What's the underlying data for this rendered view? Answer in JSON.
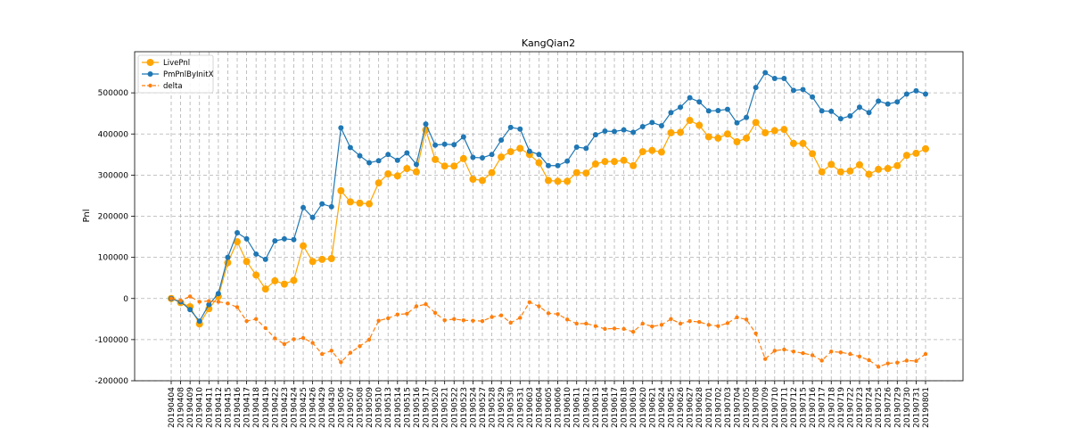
{
  "chart_data": {
    "type": "line",
    "title": "KangQian2",
    "xlabel": "",
    "ylabel": "Pnl",
    "ylim": [
      -200000,
      600000
    ],
    "yticks": [
      -200000,
      -100000,
      0,
      100000,
      200000,
      300000,
      400000,
      500000
    ],
    "grid": true,
    "legend_position": "top-left",
    "categories": [
      "20190404",
      "20190408",
      "20190409",
      "20190410",
      "20190411",
      "20190412",
      "20190415",
      "20190416",
      "20190417",
      "20190418",
      "20190419",
      "20190422",
      "20190423",
      "20190424",
      "20190425",
      "20190426",
      "20190429",
      "20190430",
      "20190506",
      "20190507",
      "20190508",
      "20190509",
      "20190510",
      "20190513",
      "20190514",
      "20190515",
      "20190516",
      "20190517",
      "20190520",
      "20190521",
      "20190522",
      "20190523",
      "20190524",
      "20190527",
      "20190528",
      "20190529",
      "20190530",
      "20190531",
      "20190603",
      "20190604",
      "20190605",
      "20190606",
      "20190610",
      "20190611",
      "20190612",
      "20190613",
      "20190614",
      "20190617",
      "20190618",
      "20190619",
      "20190620",
      "20190621",
      "20190624",
      "20190625",
      "20190626",
      "20190627",
      "20190628",
      "20190701",
      "20190702",
      "20190703",
      "20190704",
      "20190705",
      "20190708",
      "20190709",
      "20190710",
      "20190711",
      "20190712",
      "20190715",
      "20190716",
      "20190717",
      "20190718",
      "20190719",
      "20190722",
      "20190723",
      "20190724",
      "20190725",
      "20190726",
      "20190729",
      "20190730",
      "20190731",
      "20190801"
    ],
    "series": [
      {
        "name": "LivePnl",
        "color": "#ffa500",
        "style": "solid",
        "marker": "circle-large",
        "values": [
          0,
          -10000,
          -20000,
          -62000,
          -25000,
          5000,
          87000,
          138000,
          90000,
          57000,
          23000,
          43000,
          35000,
          44000,
          128000,
          90000,
          95000,
          97000,
          262000,
          235000,
          232000,
          230000,
          281000,
          303000,
          298000,
          316000,
          308000,
          410000,
          338000,
          322000,
          322000,
          340000,
          290000,
          287000,
          306000,
          344000,
          357000,
          365000,
          350000,
          330000,
          287000,
          285000,
          285000,
          306000,
          305000,
          327000,
          333000,
          333000,
          336000,
          323000,
          357000,
          360000,
          356000,
          403000,
          404000,
          433000,
          421000,
          393000,
          390000,
          400000,
          381000,
          390000,
          428000,
          403000,
          408000,
          411000,
          377000,
          377000,
          352000,
          308000,
          326000,
          308000,
          310000,
          325000,
          302000,
          314000,
          316000,
          323000,
          348000,
          353000,
          364000
        ]
      },
      {
        "name": "PmPnlByInitX",
        "color": "#1f77b4",
        "style": "solid",
        "marker": "circle",
        "values": [
          0,
          -8000,
          -27000,
          -55000,
          -15000,
          12000,
          100000,
          160000,
          145000,
          108000,
          95000,
          140000,
          145000,
          143000,
          221000,
          197000,
          230000,
          223000,
          415000,
          367000,
          347000,
          330000,
          335000,
          350000,
          336000,
          354000,
          326000,
          424000,
          373000,
          375000,
          374000,
          393000,
          343000,
          342000,
          350000,
          385000,
          416000,
          412000,
          358000,
          350000,
          323000,
          323000,
          334000,
          368000,
          365000,
          398000,
          407000,
          406000,
          410000,
          404000,
          418000,
          428000,
          420000,
          452000,
          465000,
          488000,
          478000,
          456000,
          457000,
          460000,
          427000,
          440000,
          513000,
          549000,
          535000,
          535000,
          506000,
          508000,
          490000,
          456000,
          455000,
          437000,
          444000,
          465000,
          452000,
          480000,
          473000,
          478000,
          497000,
          505000,
          497000
        ]
      },
      {
        "name": "delta",
        "color": "#ff7f0e",
        "style": "dashed",
        "marker": "circle-small",
        "values": [
          0,
          -5000,
          5000,
          -8000,
          -6000,
          -8000,
          -12000,
          -21000,
          -55000,
          -50000,
          -72000,
          -97000,
          -111000,
          -99000,
          -96000,
          -108000,
          -135000,
          -127000,
          -155000,
          -132000,
          -116000,
          -100000,
          -54000,
          -48000,
          -39000,
          -37000,
          -19000,
          -14000,
          -35000,
          -53000,
          -50000,
          -53000,
          -54000,
          -55000,
          -45000,
          -41000,
          -59000,
          -47000,
          -9000,
          -19000,
          -36000,
          -38000,
          -51000,
          -61000,
          -61000,
          -67000,
          -74000,
          -73000,
          -74000,
          -81000,
          -61000,
          -68000,
          -64000,
          -50000,
          -61000,
          -55000,
          -57000,
          -64000,
          -67000,
          -60000,
          -46000,
          -51000,
          -85000,
          -147000,
          -127000,
          -124000,
          -129000,
          -133000,
          -138000,
          -151000,
          -129000,
          -131000,
          -135000,
          -141000,
          -150000,
          -166000,
          -158000,
          -156000,
          -151000,
          -152000,
          -135000
        ]
      }
    ]
  }
}
